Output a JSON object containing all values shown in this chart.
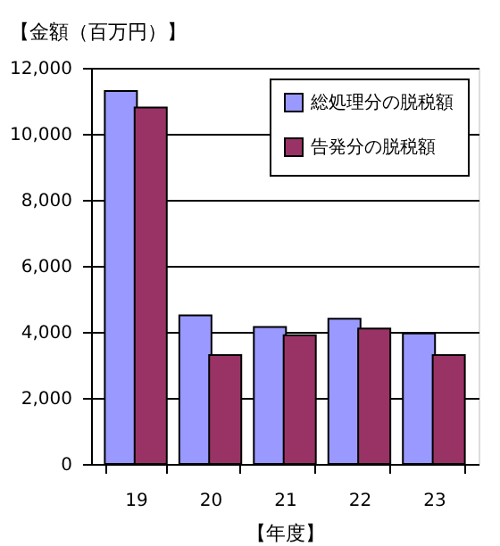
{
  "chart_data": {
    "type": "bar",
    "ylabel": "【金額（百万円）】",
    "xlabel": "【年度】",
    "categories": [
      "19",
      "20",
      "21",
      "22",
      "23"
    ],
    "series": [
      {
        "name": "総処理分の脱税額",
        "color": "#9999ff",
        "values": [
          11300,
          4500,
          4150,
          4400,
          3950
        ]
      },
      {
        "name": "告発分の脱税額",
        "color": "#993366",
        "values": [
          10800,
          3300,
          3900,
          4100,
          3300
        ]
      }
    ],
    "ylim": [
      0,
      12000
    ],
    "yticks": [
      0,
      {
        "value": 2000,
        "label": "2,000"
      },
      {
        "value": 4000,
        "label": "4,000"
      },
      {
        "value": 6000,
        "label": "6,000"
      },
      {
        "value": 8000,
        "label": "8,000"
      },
      {
        "value": 10000,
        "label": "10,000"
      },
      {
        "value": 12000,
        "label": "12,000"
      }
    ],
    "grid": "y",
    "legend": "top right"
  }
}
